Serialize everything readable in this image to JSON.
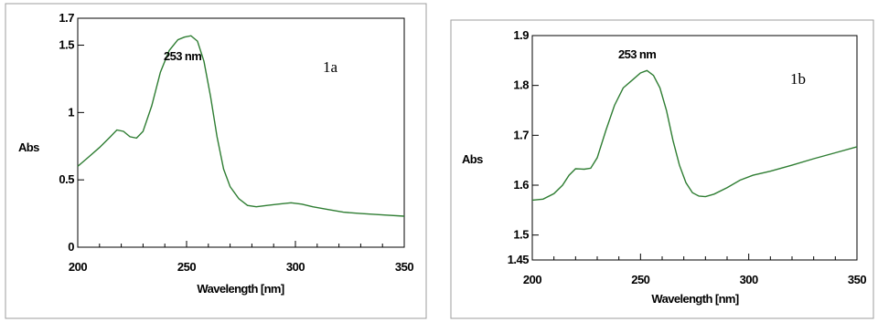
{
  "colors": {
    "line": "#2e7d32",
    "frame": "#000000",
    "panel_border": "#9e9e9e"
  },
  "chart_data": [
    {
      "type": "line",
      "panel_label": "1a",
      "annotation": "253 nm",
      "xlabel": "Wavelength [nm]",
      "ylabel": "Abs",
      "xlim": [
        200,
        350
      ],
      "ylim": [
        0,
        1.7
      ],
      "xticks": [
        200,
        250,
        300,
        350
      ],
      "xtick_labels": [
        "200",
        "250",
        "300",
        "350"
      ],
      "yticks": [
        0,
        0.5,
        1,
        1.5,
        1.7
      ],
      "ytick_labels": [
        "0",
        "0.5",
        "1",
        "1.5",
        "1.7"
      ],
      "series": [
        {
          "x": [
            200,
            205,
            210,
            215,
            218,
            221,
            224,
            227,
            230,
            234,
            238,
            242,
            246,
            249,
            252,
            255,
            258,
            261,
            264,
            267,
            270,
            274,
            278,
            282,
            287,
            292,
            298,
            303,
            308,
            315,
            322,
            330,
            340,
            350
          ],
          "y": [
            0.6,
            0.67,
            0.74,
            0.82,
            0.87,
            0.86,
            0.82,
            0.81,
            0.86,
            1.05,
            1.3,
            1.46,
            1.54,
            1.56,
            1.57,
            1.53,
            1.38,
            1.12,
            0.82,
            0.58,
            0.45,
            0.36,
            0.31,
            0.3,
            0.31,
            0.32,
            0.33,
            0.32,
            0.3,
            0.28,
            0.26,
            0.25,
            0.24,
            0.23
          ]
        }
      ]
    },
    {
      "type": "line",
      "panel_label": "1b",
      "annotation": "253 nm",
      "xlabel": "Wavelength [nm]",
      "ylabel": "Abs",
      "xlim": [
        200,
        350
      ],
      "ylim": [
        1.45,
        1.9
      ],
      "xticks": [
        200,
        250,
        300,
        350
      ],
      "xtick_labels": [
        "200",
        "250",
        "300",
        "350"
      ],
      "yticks": [
        1.45,
        1.5,
        1.6,
        1.7,
        1.8,
        1.9
      ],
      "ytick_labels": [
        "1.45",
        "1.5",
        "1.6",
        "1.7",
        "1.8",
        "1.9"
      ],
      "series": [
        {
          "x": [
            200,
            205,
            210,
            214,
            217,
            220,
            224,
            227,
            230,
            234,
            238,
            242,
            246,
            250,
            253,
            256,
            259,
            262,
            265,
            268,
            271,
            274,
            277,
            280,
            284,
            290,
            296,
            302,
            310,
            320,
            330,
            340,
            350
          ],
          "y": [
            1.57,
            1.572,
            1.583,
            1.6,
            1.62,
            1.633,
            1.632,
            1.634,
            1.655,
            1.71,
            1.76,
            1.795,
            1.81,
            1.825,
            1.83,
            1.82,
            1.795,
            1.75,
            1.69,
            1.64,
            1.605,
            1.585,
            1.578,
            1.577,
            1.582,
            1.595,
            1.61,
            1.62,
            1.628,
            1.64,
            1.653,
            1.665,
            1.677
          ]
        }
      ]
    }
  ]
}
